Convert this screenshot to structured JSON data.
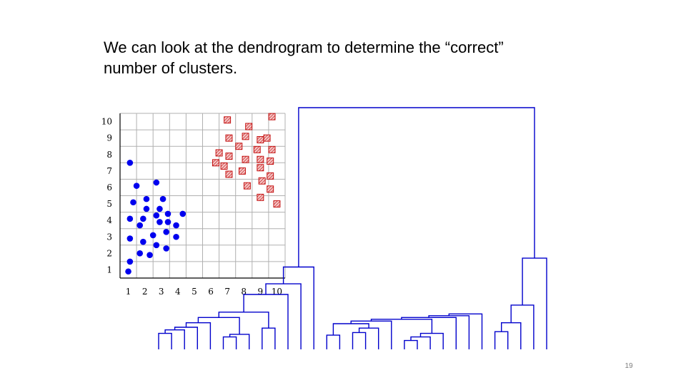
{
  "slide": {
    "title_line1": "We can look at the dendrogram to determine the “correct”",
    "title_line2": "number of clusters.",
    "page_number": "19"
  },
  "colors": {
    "cluster_a": "#0000ee",
    "cluster_b_fill": "#f4c7c7",
    "cluster_b_edge": "#c00000",
    "dendrogram": "#0000cc",
    "grid": "#b0b0b0"
  },
  "chart_data": {
    "type": "scatter",
    "x_ticks": [
      "1",
      "2",
      "3",
      "4",
      "5",
      "6",
      "7",
      "8",
      "9",
      "10"
    ],
    "y_ticks": [
      "1",
      "2",
      "3",
      "4",
      "5",
      "6",
      "7",
      "8",
      "9",
      "10"
    ],
    "xlim": [
      0,
      10
    ],
    "ylim": [
      0,
      10
    ],
    "grid": true,
    "series": [
      {
        "marker": "circle",
        "points": [
          [
            0.6,
            7.0
          ],
          [
            1.0,
            5.6
          ],
          [
            0.8,
            4.6
          ],
          [
            0.6,
            3.6
          ],
          [
            1.4,
            3.6
          ],
          [
            1.2,
            3.2
          ],
          [
            0.6,
            2.4
          ],
          [
            1.4,
            2.2
          ],
          [
            1.2,
            1.5
          ],
          [
            1.8,
            1.4
          ],
          [
            0.6,
            1.0
          ],
          [
            0.5,
            0.4
          ],
          [
            2.2,
            5.8
          ],
          [
            1.6,
            4.8
          ],
          [
            2.6,
            4.8
          ],
          [
            1.6,
            4.2
          ],
          [
            2.4,
            4.2
          ],
          [
            2.2,
            3.8
          ],
          [
            2.4,
            3.4
          ],
          [
            2.9,
            3.4
          ],
          [
            2.9,
            3.9
          ],
          [
            3.4,
            3.2
          ],
          [
            3.8,
            3.9
          ],
          [
            2.0,
            2.6
          ],
          [
            2.8,
            2.8
          ],
          [
            3.4,
            2.5
          ],
          [
            2.2,
            2.0
          ],
          [
            2.8,
            1.8
          ]
        ]
      },
      {
        "marker": "hatched-square",
        "points": [
          [
            6.5,
            9.6
          ],
          [
            9.2,
            9.8
          ],
          [
            7.8,
            9.2
          ],
          [
            7.6,
            8.6
          ],
          [
            6.6,
            8.5
          ],
          [
            8.5,
            8.4
          ],
          [
            8.9,
            8.5
          ],
          [
            7.2,
            8.0
          ],
          [
            8.3,
            7.8
          ],
          [
            9.2,
            7.8
          ],
          [
            6.0,
            7.6
          ],
          [
            6.6,
            7.4
          ],
          [
            7.6,
            7.2
          ],
          [
            8.5,
            7.2
          ],
          [
            9.1,
            7.1
          ],
          [
            5.8,
            7.0
          ],
          [
            6.3,
            6.8
          ],
          [
            8.5,
            6.7
          ],
          [
            7.4,
            6.5
          ],
          [
            6.6,
            6.3
          ],
          [
            9.1,
            6.2
          ],
          [
            8.6,
            5.9
          ],
          [
            7.7,
            5.6
          ],
          [
            9.1,
            5.4
          ],
          [
            8.5,
            4.9
          ],
          [
            9.5,
            4.5
          ]
        ]
      }
    ],
    "dendrogram": {
      "leaf_count": 31,
      "links": [
        [
          0,
          1,
          0.18
        ],
        [
          31,
          2,
          0.22
        ],
        [
          32,
          3,
          0.25
        ],
        [
          33,
          4,
          0.3
        ],
        [
          5,
          6,
          0.14
        ],
        [
          35,
          7,
          0.17
        ],
        [
          34,
          36,
          0.36
        ],
        [
          8,
          9,
          0.24
        ],
        [
          37,
          38,
          0.42
        ],
        [
          39,
          10,
          0.62
        ],
        [
          40,
          11,
          0.74
        ],
        [
          41,
          12,
          0.93
        ],
        [
          13,
          14,
          0.16
        ],
        [
          15,
          16,
          0.19
        ],
        [
          44,
          17,
          0.24
        ],
        [
          43,
          45,
          0.29
        ],
        [
          46,
          18,
          0.32
        ],
        [
          19,
          20,
          0.1
        ],
        [
          48,
          21,
          0.14
        ],
        [
          49,
          22,
          0.18
        ],
        [
          47,
          50,
          0.34
        ],
        [
          51,
          23,
          0.36
        ],
        [
          52,
          24,
          0.38
        ],
        [
          53,
          25,
          0.4
        ],
        [
          26,
          27,
          0.2
        ],
        [
          55,
          28,
          0.3
        ],
        [
          56,
          29,
          0.5
        ],
        [
          57,
          30,
          1.03
        ],
        [
          42,
          58,
          2.73
        ]
      ]
    }
  }
}
